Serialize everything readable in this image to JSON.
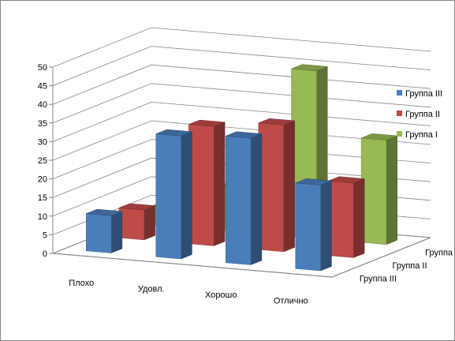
{
  "chart_data": {
    "type": "bar",
    "subtype": "3d-column",
    "categories": [
      "Плохо",
      "Удовл.",
      "Хорошо",
      "Отлично"
    ],
    "series": [
      {
        "name": "Группа III",
        "values": [
          10,
          33,
          34,
          23
        ],
        "color": "#4a7ebb"
      },
      {
        "name": "Группа II",
        "values": [
          8,
          32,
          34,
          20
        ],
        "color": "#be4b48"
      },
      {
        "name": "Группа I",
        "values": [
          5,
          12,
          45,
          28
        ],
        "color": "#98b954"
      }
    ],
    "depth_labels": [
      "Группа I",
      "Группа II",
      "Группа III"
    ],
    "yticks": [
      "0",
      "5",
      "10",
      "15",
      "20",
      "25",
      "30",
      "35",
      "40",
      "45",
      "50"
    ],
    "ylim": [
      0,
      50
    ],
    "grid": true,
    "legend": "right"
  }
}
